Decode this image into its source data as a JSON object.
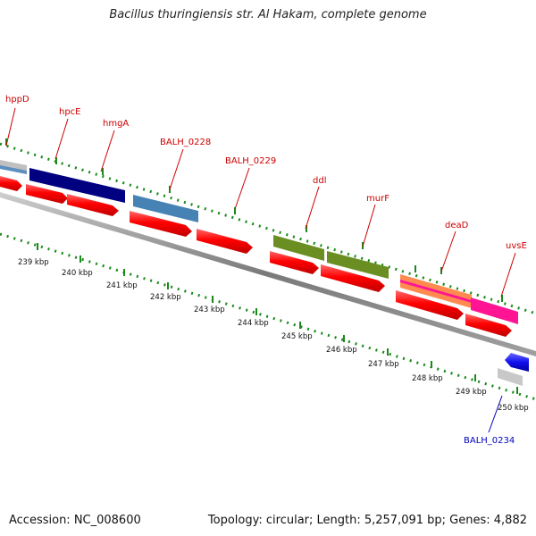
{
  "title": "Bacillus thuringiensis str. Al Hakam, complete genome",
  "footer": {
    "accession": "Accession: NC_008600",
    "summary": "Topology: circular; Length: 5,257,091 bp; Genes: 4,882"
  },
  "colors": {
    "label_red": "#cc0000",
    "label_blue": "#0000bb",
    "tick_green": "#1a8a1a",
    "cds_red": "#ff0000",
    "backbone": "#888888"
  },
  "gene_labels": [
    {
      "name": "hppD",
      "color": "#cc0000"
    },
    {
      "name": "hpcE",
      "color": "#cc0000"
    },
    {
      "name": "hmgA",
      "color": "#cc0000"
    },
    {
      "name": "BALH_0228",
      "color": "#cc0000"
    },
    {
      "name": "BALH_0229",
      "color": "#cc0000"
    },
    {
      "name": "ddl",
      "color": "#cc0000"
    },
    {
      "name": "murF",
      "color": "#cc0000"
    },
    {
      "name": "deaD",
      "color": "#cc0000"
    },
    {
      "name": "uvsE",
      "color": "#cc0000"
    },
    {
      "name": "BALH_0234",
      "color": "#0000bb"
    }
  ],
  "kbp_labels": [
    "239 kbp",
    "240 kbp",
    "241 kbp",
    "242 kbp",
    "243 kbp",
    "244 kbp",
    "245 kbp",
    "246 kbp",
    "247 kbp",
    "248 kbp",
    "249 kbp",
    "250 kbp"
  ],
  "cog_features": [
    {
      "color": "#c0c0c0"
    },
    {
      "color": "#000080"
    },
    {
      "color": "#4682b4"
    },
    {
      "color": "#6b8e23"
    },
    {
      "color": "#6b8e23"
    },
    {
      "color": "#ff8a50"
    },
    {
      "color": "#ff1493"
    },
    {
      "color": "#2020ff"
    },
    {
      "color": "#c8c8c8"
    }
  ]
}
